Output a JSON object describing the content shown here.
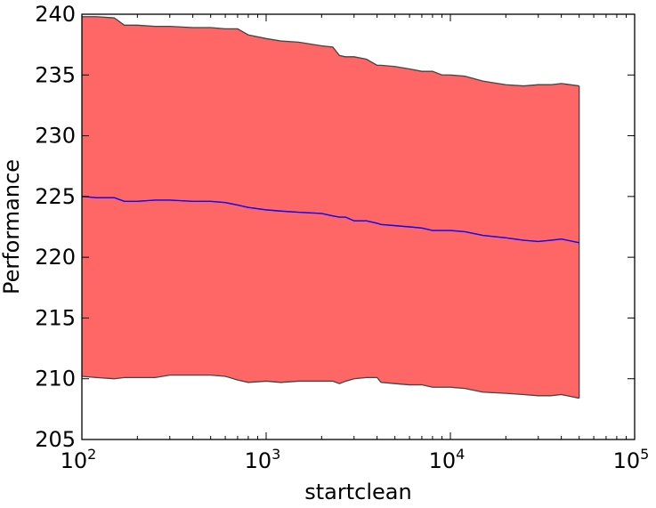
{
  "chart_data": {
    "type": "area",
    "title": "",
    "xlabel": "startclean",
    "ylabel": "Performance",
    "xscale": "log",
    "xlim": [
      100,
      100000
    ],
    "ylim": [
      205,
      240
    ],
    "grid": false,
    "x_ticks": [
      {
        "value": 100,
        "base": "10",
        "exp": "2"
      },
      {
        "value": 1000,
        "base": "10",
        "exp": "3"
      },
      {
        "value": 10000,
        "base": "10",
        "exp": "4"
      },
      {
        "value": 100000,
        "base": "10",
        "exp": "5"
      }
    ],
    "y_ticks": [
      {
        "value": 205,
        "label": "205"
      },
      {
        "value": 210,
        "label": "210"
      },
      {
        "value": 215,
        "label": "215"
      },
      {
        "value": 220,
        "label": "220"
      },
      {
        "value": 225,
        "label": "225"
      },
      {
        "value": 230,
        "label": "230"
      },
      {
        "value": 235,
        "label": "235"
      },
      {
        "value": 240,
        "label": "240"
      }
    ],
    "colors": {
      "band_fill": "#ff6666",
      "band_edge": "#444444",
      "mean_line": "#0000ff"
    },
    "x": [
      100,
      120,
      150,
      170,
      200,
      250,
      300,
      400,
      500,
      600,
      700,
      800,
      1000,
      1200,
      1500,
      2000,
      2300,
      2500,
      2700,
      3000,
      3500,
      4000,
      4200,
      5000,
      6000,
      7000,
      8000,
      9000,
      10000,
      12000,
      15000,
      20000,
      25000,
      30000,
      35000,
      40000,
      50000
    ],
    "upper": [
      239.8,
      239.8,
      239.7,
      239.1,
      239.1,
      239.0,
      239.0,
      238.9,
      238.9,
      238.8,
      238.8,
      238.3,
      238.0,
      237.8,
      237.7,
      237.4,
      237.3,
      236.6,
      236.5,
      236.5,
      236.3,
      235.8,
      235.8,
      235.7,
      235.5,
      235.3,
      235.3,
      235.0,
      235.0,
      234.9,
      234.5,
      234.2,
      234.1,
      234.2,
      234.2,
      234.3,
      234.1
    ],
    "lower": [
      210.2,
      210.1,
      210.0,
      210.1,
      210.1,
      210.1,
      210.3,
      210.3,
      210.3,
      210.2,
      209.9,
      209.7,
      209.8,
      209.7,
      209.8,
      209.8,
      209.8,
      209.6,
      209.8,
      210.0,
      210.1,
      210.1,
      209.7,
      209.6,
      209.5,
      209.5,
      209.3,
      209.3,
      209.3,
      209.2,
      208.9,
      208.8,
      208.7,
      208.6,
      208.6,
      208.7,
      208.4
    ],
    "mean": [
      225.0,
      224.9,
      224.9,
      224.6,
      224.6,
      224.7,
      224.7,
      224.6,
      224.6,
      224.5,
      224.3,
      224.1,
      223.9,
      223.8,
      223.7,
      223.6,
      223.4,
      223.3,
      223.3,
      223.0,
      223.0,
      222.8,
      222.7,
      222.6,
      222.5,
      222.4,
      222.2,
      222.2,
      222.2,
      222.1,
      221.8,
      221.6,
      221.4,
      221.3,
      221.4,
      221.5,
      221.2
    ]
  }
}
